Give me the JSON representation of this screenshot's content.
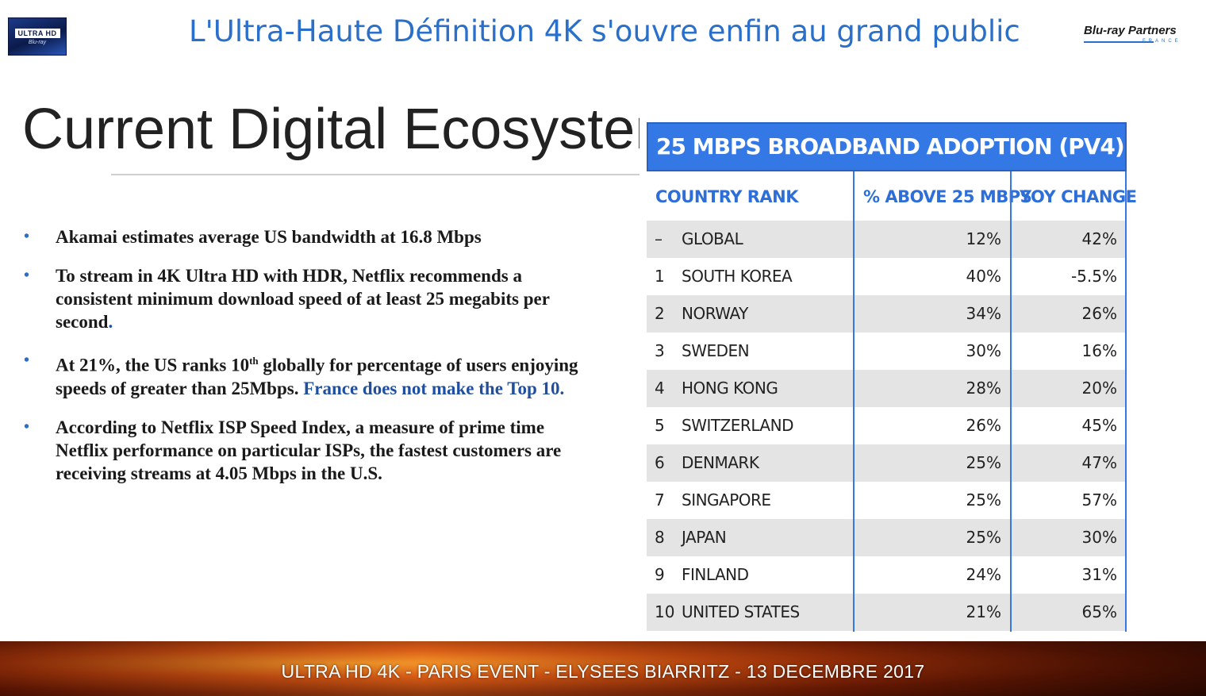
{
  "header": {
    "logo_left": {
      "badge": "ULTRA HD",
      "sub": "Blu-ray"
    },
    "title": "L'Ultra-Haute Définition 4K s'ouvre enfin au grand public",
    "logo_right": {
      "brand": "Blu-ray Partners",
      "sub": "FRANCE"
    }
  },
  "slide": {
    "heading": "Current Digital Ecosystem"
  },
  "bullets": [
    {
      "text": "Akamai estimates average US bandwidth at 16.8 Mbps"
    },
    {
      "text": "To stream in 4K Ultra HD with HDR, Netflix recommends a consistent minimum download speed of at least 25 megabits per second",
      "suffix": "."
    },
    {
      "pre": "At 21%, the US ranks 10",
      "sup": "th",
      "post": " globally for percentage of users enjoying speeds of greater than 25Mbps.",
      "highlight": "France does not make the Top 10."
    },
    {
      "text": "According to Netflix ISP Speed Index, a measure of prime time Netflix performance on particular ISPs, the fastest customers are receiving streams at 4.05 Mbps in the U.S."
    }
  ],
  "table": {
    "title": "25 MBPS BROADBAND ADOPTION (PV4)",
    "columns": [
      "COUNTRY RANK",
      "% ABOVE 25 MBPS",
      "YOY CHANGE"
    ],
    "rows": [
      {
        "rank": "–",
        "country": "GLOBAL",
        "pct": "12%",
        "yoy": "42%"
      },
      {
        "rank": "1",
        "country": "SOUTH KOREA",
        "pct": "40%",
        "yoy": "-5.5%"
      },
      {
        "rank": "2",
        "country": "NORWAY",
        "pct": "34%",
        "yoy": "26%"
      },
      {
        "rank": "3",
        "country": "SWEDEN",
        "pct": "30%",
        "yoy": "16%"
      },
      {
        "rank": "4",
        "country": "HONG KONG",
        "pct": "28%",
        "yoy": "20%"
      },
      {
        "rank": "5",
        "country": "SWITZERLAND",
        "pct": "26%",
        "yoy": "45%"
      },
      {
        "rank": "6",
        "country": "DENMARK",
        "pct": "25%",
        "yoy": "47%"
      },
      {
        "rank": "7",
        "country": "SINGAPORE",
        "pct": "25%",
        "yoy": "57%"
      },
      {
        "rank": "8",
        "country": "JAPAN",
        "pct": "25%",
        "yoy": "30%"
      },
      {
        "rank": "9",
        "country": "FINLAND",
        "pct": "24%",
        "yoy": "31%"
      },
      {
        "rank": "10",
        "country": "UNITED STATES",
        "pct": "21%",
        "yoy": "65%"
      }
    ]
  },
  "footer": {
    "text": "ULTRA HD 4K - PARIS EVENT - ELYSEES BIARRITZ - 13 DECEMBRE 2017"
  },
  "colors": {
    "title_blue": "#2a6fc9",
    "table_blue": "#3478e6",
    "row_shade": "#e4e4e4",
    "highlight_blue": "#1f4f9e"
  }
}
